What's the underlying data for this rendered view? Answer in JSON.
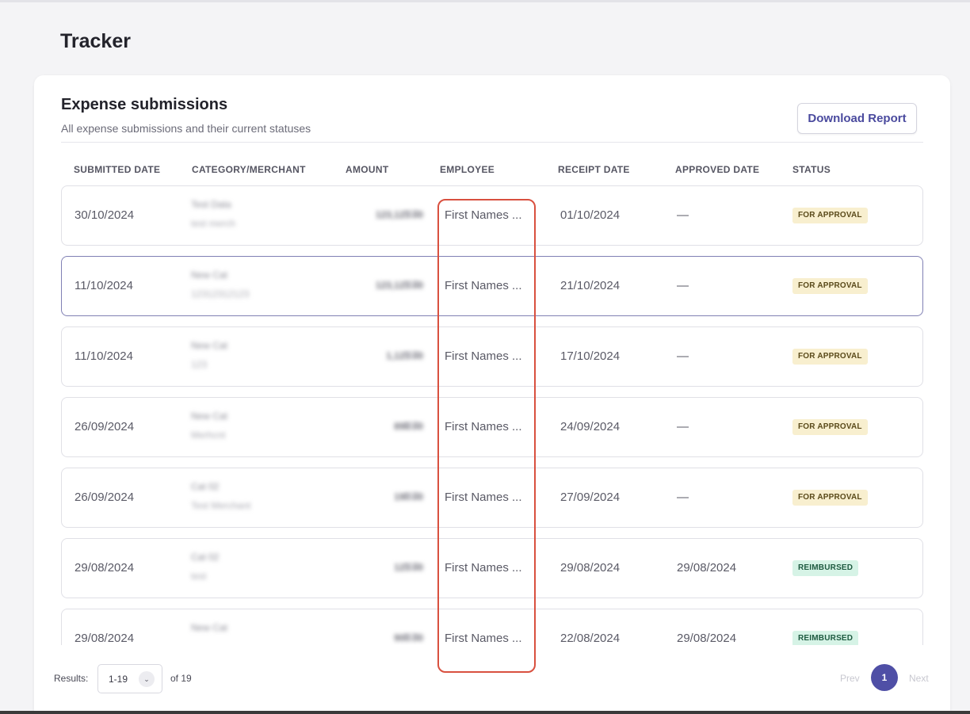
{
  "page": {
    "title": "Tracker"
  },
  "card": {
    "title": "Expense submissions",
    "subtitle": "All expense submissions and their current statuses",
    "download_label": "Download Report"
  },
  "table": {
    "headers": [
      "SUBMITTED DATE",
      "CATEGORY/MERCHANT",
      "AMOUNT",
      "EMPLOYEE",
      "RECEIPT DATE",
      "APPROVED DATE",
      "STATUS"
    ],
    "rows": [
      {
        "submitted": "30/10/2024",
        "category": "Test Data",
        "merchant": "test merch",
        "amount": "123,123.00",
        "currency": "AED",
        "employee": "First Names ...",
        "receipt": "01/10/2024",
        "approved": "—",
        "status": "FOR APPROVAL",
        "status_type": "approval",
        "selected": false
      },
      {
        "submitted": "11/10/2024",
        "category": "New Cat",
        "merchant": "12312312123",
        "amount": "123,123.00",
        "currency": "AED",
        "employee": "First Names ...",
        "receipt": "21/10/2024",
        "approved": "—",
        "status": "FOR APPROVAL",
        "status_type": "approval",
        "selected": true
      },
      {
        "submitted": "11/10/2024",
        "category": "New Cat",
        "merchant": "123",
        "amount": "1,123.00",
        "currency": "AED",
        "employee": "First Names ...",
        "receipt": "17/10/2024",
        "approved": "—",
        "status": "FOR APPROVAL",
        "status_type": "approval",
        "selected": false
      },
      {
        "submitted": "26/09/2024",
        "category": "New Cat",
        "merchant": "Merhcnt",
        "amount": "898.00",
        "currency": "AED",
        "employee": "First Names ...",
        "receipt": "24/09/2024",
        "approved": "—",
        "status": "FOR APPROVAL",
        "status_type": "approval",
        "selected": false
      },
      {
        "submitted": "26/09/2024",
        "category": "Cat 02",
        "merchant": "Test Merchant",
        "amount": "190.00",
        "currency": "AED",
        "employee": "First Names ...",
        "receipt": "27/09/2024",
        "approved": "—",
        "status": "FOR APPROVAL",
        "status_type": "approval",
        "selected": false
      },
      {
        "submitted": "29/08/2024",
        "category": "Cat 02",
        "merchant": "test",
        "amount": "123.00",
        "currency": "AED",
        "employee": "First Names ...",
        "receipt": "29/08/2024",
        "approved": "29/08/2024",
        "status": "REIMBURSED",
        "status_type": "reimbursed",
        "selected": false
      },
      {
        "submitted": "29/08/2024",
        "category": "New Cat",
        "merchant": "",
        "amount": "900.00",
        "currency": "AFN",
        "employee": "First Names ...",
        "receipt": "22/08/2024",
        "approved": "29/08/2024",
        "status": "REIMBURSED",
        "status_type": "reimbursed",
        "selected": false
      }
    ]
  },
  "pagination": {
    "results_label": "Results:",
    "range": "1-19",
    "of_total": "of 19",
    "prev": "Prev",
    "current_page": "1",
    "next": "Next"
  },
  "colors": {
    "accent": "#4f4fa6",
    "highlight": "#d9503f",
    "approval_bg": "#f8efcf",
    "reimbursed_bg": "#d6f3e6"
  }
}
